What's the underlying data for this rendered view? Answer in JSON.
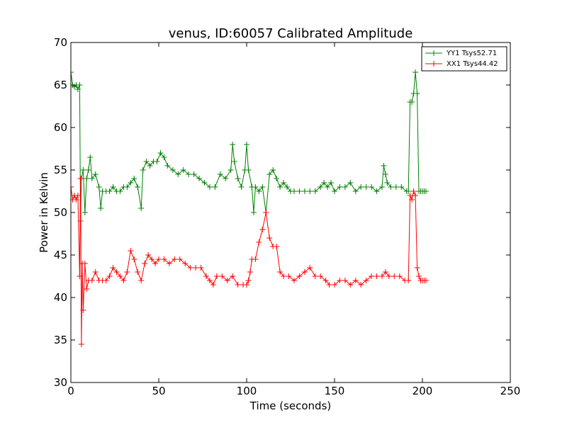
{
  "chart_data": {
    "type": "line",
    "title": "venus, ID:60057 Calibrated Amplitude",
    "xlabel": "Time (seconds)",
    "ylabel": "Power in Kelvin",
    "xlim": [
      0,
      250
    ],
    "ylim": [
      30,
      70
    ],
    "xticks": [
      "0",
      "50",
      "100",
      "150",
      "200",
      "250"
    ],
    "yticks": [
      "30",
      "35",
      "40",
      "45",
      "50",
      "55",
      "60",
      "65",
      "70"
    ],
    "grid": false,
    "legend_position": "top-right",
    "marker": "plus",
    "series": [
      {
        "name": "YY1 Tsys52.71",
        "color": "#008000",
        "points": [
          [
            0,
            66.5
          ],
          [
            1,
            65
          ],
          [
            2,
            64.8
          ],
          [
            3,
            65
          ],
          [
            4,
            64.5
          ],
          [
            5,
            65
          ],
          [
            5.5,
            49
          ],
          [
            6,
            54
          ],
          [
            7,
            55
          ],
          [
            8,
            50
          ],
          [
            9,
            54
          ],
          [
            10,
            55
          ],
          [
            11,
            56.5
          ],
          [
            12,
            54
          ],
          [
            14,
            54.5
          ],
          [
            16,
            53
          ],
          [
            17,
            50.5
          ],
          [
            18,
            52.5
          ],
          [
            20,
            52.5
          ],
          [
            22,
            52.5
          ],
          [
            24,
            53
          ],
          [
            26,
            52.5
          ],
          [
            28,
            52.5
          ],
          [
            30,
            53
          ],
          [
            32,
            53
          ],
          [
            34,
            53.5
          ],
          [
            36,
            54
          ],
          [
            38,
            53
          ],
          [
            40,
            50.5
          ],
          [
            41,
            55
          ],
          [
            43,
            56
          ],
          [
            45,
            55.5
          ],
          [
            47,
            56
          ],
          [
            49,
            56
          ],
          [
            51,
            57
          ],
          [
            53,
            56.5
          ],
          [
            55,
            55.5
          ],
          [
            58,
            55
          ],
          [
            61,
            54.5
          ],
          [
            64,
            55
          ],
          [
            67,
            54.5
          ],
          [
            70,
            54.5
          ],
          [
            73,
            54
          ],
          [
            76,
            53.5
          ],
          [
            79,
            53
          ],
          [
            82,
            53
          ],
          [
            85,
            54.5
          ],
          [
            88,
            54
          ],
          [
            91,
            55
          ],
          [
            92,
            58
          ],
          [
            93,
            56
          ],
          [
            95,
            54
          ],
          [
            97,
            53
          ],
          [
            99,
            55
          ],
          [
            100,
            58
          ],
          [
            101,
            55
          ],
          [
            103,
            53
          ],
          [
            104,
            50
          ],
          [
            105,
            53
          ],
          [
            107,
            52.5
          ],
          [
            109,
            53
          ],
          [
            111,
            50
          ],
          [
            113,
            54.5
          ],
          [
            115,
            55
          ],
          [
            117,
            54
          ],
          [
            119,
            53
          ],
          [
            121,
            53.5
          ],
          [
            123,
            53
          ],
          [
            125,
            52.5
          ],
          [
            127,
            52.5
          ],
          [
            130,
            52.5
          ],
          [
            133,
            52.5
          ],
          [
            136,
            52.5
          ],
          [
            139,
            52.5
          ],
          [
            142,
            53
          ],
          [
            144,
            53.5
          ],
          [
            146,
            53
          ],
          [
            148,
            53.5
          ],
          [
            150,
            52.5
          ],
          [
            153,
            53
          ],
          [
            156,
            53
          ],
          [
            159,
            53.5
          ],
          [
            162,
            52.5
          ],
          [
            165,
            53
          ],
          [
            168,
            53
          ],
          [
            171,
            53
          ],
          [
            174,
            52.5
          ],
          [
            177,
            53
          ],
          [
            178,
            55.5
          ],
          [
            179,
            54.5
          ],
          [
            180,
            53.5
          ],
          [
            182,
            53
          ],
          [
            185,
            53
          ],
          [
            188,
            53
          ],
          [
            191,
            52.5
          ],
          [
            192,
            52.5
          ],
          [
            193,
            63
          ],
          [
            194,
            63
          ],
          [
            195,
            64
          ],
          [
            196,
            66.5
          ],
          [
            197,
            64
          ],
          [
            198,
            52.5
          ],
          [
            199,
            52.5
          ],
          [
            200,
            52.5
          ],
          [
            201,
            52.5
          ],
          [
            202,
            52.5
          ]
        ]
      },
      {
        "name": "XX1 Tsys44.42",
        "color": "#ff0000",
        "points": [
          [
            0,
            53
          ],
          [
            1,
            51.5
          ],
          [
            2,
            52
          ],
          [
            3,
            51.5
          ],
          [
            4,
            52
          ],
          [
            5,
            42.5
          ],
          [
            5.5,
            54
          ],
          [
            6,
            34.5
          ],
          [
            6.5,
            44
          ],
          [
            7,
            38.5
          ],
          [
            8,
            44
          ],
          [
            9,
            41
          ],
          [
            10,
            42
          ],
          [
            12,
            42
          ],
          [
            14,
            43
          ],
          [
            16,
            42
          ],
          [
            18,
            42
          ],
          [
            20,
            42
          ],
          [
            22,
            42.5
          ],
          [
            24,
            43.5
          ],
          [
            26,
            43
          ],
          [
            28,
            42.5
          ],
          [
            30,
            42
          ],
          [
            32,
            43
          ],
          [
            34,
            45.5
          ],
          [
            36,
            44.5
          ],
          [
            38,
            43
          ],
          [
            40,
            42
          ],
          [
            42,
            44
          ],
          [
            44,
            45
          ],
          [
            46,
            44.5
          ],
          [
            48,
            44
          ],
          [
            50,
            44.5
          ],
          [
            53,
            44.5
          ],
          [
            56,
            44
          ],
          [
            59,
            44.5
          ],
          [
            62,
            44.5
          ],
          [
            65,
            44
          ],
          [
            68,
            43.5
          ],
          [
            71,
            43.5
          ],
          [
            74,
            43.5
          ],
          [
            77,
            42.5
          ],
          [
            79,
            42
          ],
          [
            81,
            41.5
          ],
          [
            83,
            42.5
          ],
          [
            86,
            42.5
          ],
          [
            89,
            42
          ],
          [
            92,
            42.5
          ],
          [
            95,
            41.5
          ],
          [
            98,
            41.5
          ],
          [
            100,
            41.5
          ],
          [
            101,
            42
          ],
          [
            102,
            43
          ],
          [
            103,
            44.5
          ],
          [
            105,
            44.5
          ],
          [
            107,
            46.5
          ],
          [
            109,
            48
          ],
          [
            111,
            50
          ],
          [
            113,
            47
          ],
          [
            115,
            46
          ],
          [
            117,
            46
          ],
          [
            119,
            43
          ],
          [
            121,
            42.5
          ],
          [
            124,
            42.5
          ],
          [
            127,
            42
          ],
          [
            130,
            42.5
          ],
          [
            133,
            43
          ],
          [
            136,
            43.5
          ],
          [
            139,
            42.5
          ],
          [
            142,
            42.5
          ],
          [
            145,
            42
          ],
          [
            147,
            41.5
          ],
          [
            150,
            41.5
          ],
          [
            153,
            42
          ],
          [
            156,
            42
          ],
          [
            159,
            41.5
          ],
          [
            162,
            42
          ],
          [
            165,
            41.5
          ],
          [
            168,
            42
          ],
          [
            171,
            42.5
          ],
          [
            174,
            42.5
          ],
          [
            177,
            42.5
          ],
          [
            179,
            43
          ],
          [
            181,
            42.5
          ],
          [
            184,
            42.5
          ],
          [
            187,
            42.5
          ],
          [
            190,
            42
          ],
          [
            192,
            42
          ],
          [
            193,
            52
          ],
          [
            194,
            51.5
          ],
          [
            195,
            52.5
          ],
          [
            196,
            52
          ],
          [
            197,
            43.5
          ],
          [
            198,
            42.5
          ],
          [
            199,
            42
          ],
          [
            200,
            42
          ],
          [
            201,
            42
          ],
          [
            202,
            42
          ]
        ]
      }
    ]
  }
}
